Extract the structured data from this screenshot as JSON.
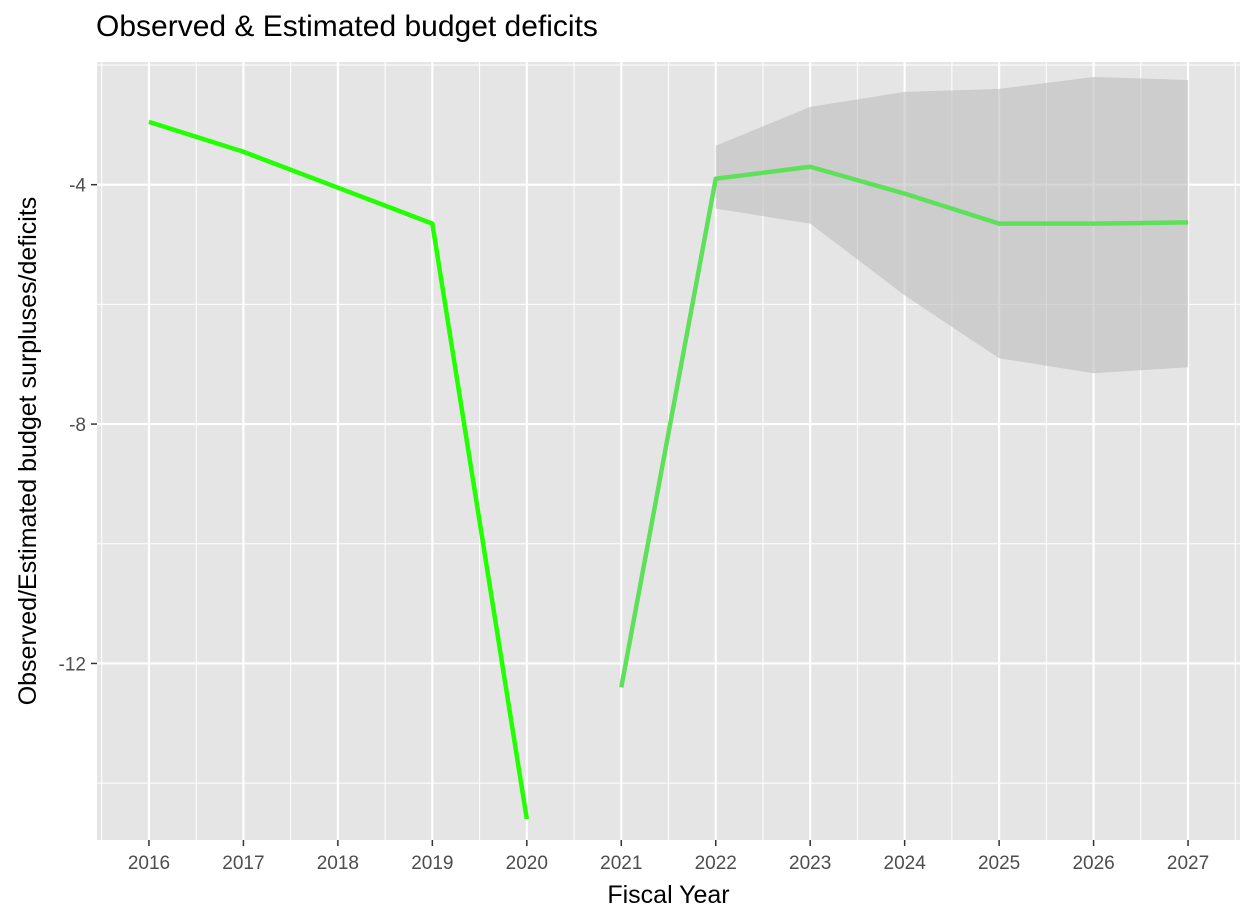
{
  "chart_data": {
    "type": "line",
    "title": "Observed & Estimated budget deficits",
    "xlabel": "Fiscal Year",
    "ylabel": "Observed/Estimated budget surpluses/deficits",
    "xlim": [
      2015.45,
      2027.55
    ],
    "ylim": [
      -14.95,
      -1.95
    ],
    "x_ticks": [
      2016,
      2017,
      2018,
      2019,
      2020,
      2021,
      2022,
      2023,
      2024,
      2025,
      2026,
      2027
    ],
    "y_ticks": [
      -12,
      -8,
      -4
    ],
    "grid": true,
    "legend": "none",
    "colors": {
      "panel_background": "#e5e5e5",
      "grid": "#ffffff",
      "observed_line": "#22ff00",
      "estimated_line": "#5ee05a",
      "ribbon": "#bdbdbd",
      "tick_text": "#4d4d4d"
    },
    "series": [
      {
        "role": "observed",
        "x": [
          2016,
          2017,
          2018,
          2019,
          2020
        ],
        "y": [
          -2.95,
          -3.45,
          -4.05,
          -4.65,
          -14.6
        ]
      },
      {
        "role": "estimated",
        "x": [
          2021,
          2022,
          2023,
          2024,
          2025,
          2026,
          2027
        ],
        "y": [
          -12.4,
          -3.9,
          -3.7,
          -4.15,
          -4.65,
          -4.65,
          -4.63
        ]
      }
    ],
    "ribbon": {
      "x": [
        2022,
        2023,
        2024,
        2025,
        2026,
        2027
      ],
      "upper": [
        -3.35,
        -2.7,
        -2.45,
        -2.4,
        -2.2,
        -2.25
      ],
      "lower": [
        -4.4,
        -4.65,
        -5.85,
        -6.9,
        -7.15,
        -7.05
      ]
    }
  }
}
